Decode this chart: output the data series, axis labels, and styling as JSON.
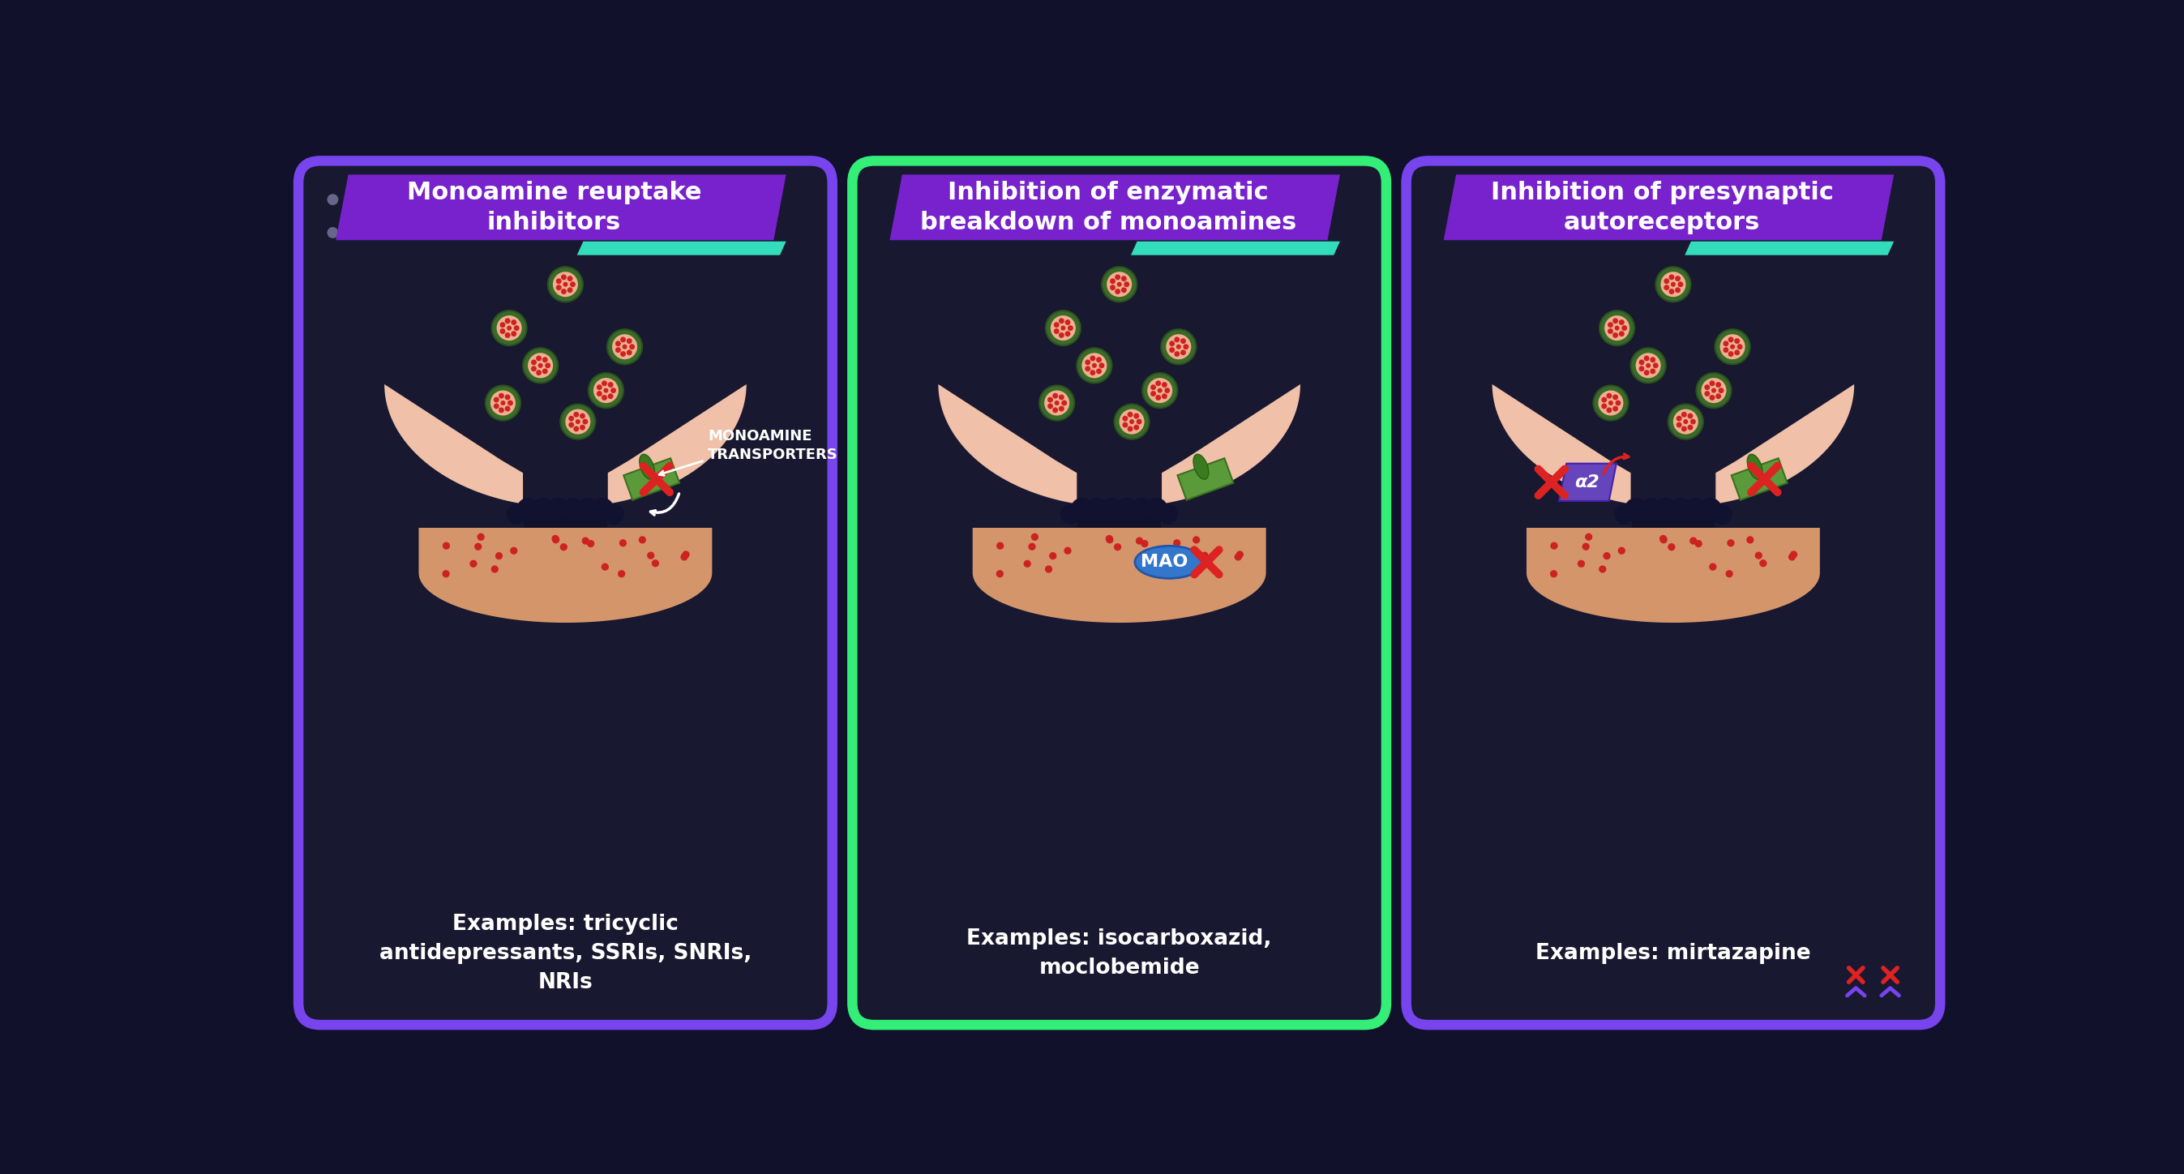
{
  "bg_color": "#12112b",
  "card_bg": "#181830",
  "synapse_color": "#f0c0a8",
  "post_color": "#d4956a",
  "title_bg": "#7722cc",
  "title_accent": "#33ddbb",
  "border1_color": "#7744ee",
  "border2_color": "#33ee77",
  "border3_color": "#7744ee",
  "dot_color": "#44445a",
  "inhibit_color": "#dd2222",
  "vesicle_outer": "#3a6a28",
  "vesicle_inner": "#eeb090",
  "nt_color": "#cc2222",
  "transporter_color": "#5a9a3a",
  "mao_color": "#3377cc",
  "alpha2_color": "#6644bb",
  "membrane_dot": "#111130",
  "white": "#ffffff",
  "gray_dot": "#666688",
  "title1": "Monoamine reuptake\ninhibitors",
  "title2": "Inhibition of enzymatic\nbreakdown of monoamines",
  "title3": "Inhibition of presynaptic\nautoreceptors",
  "example1": "Examples: tricyclic\nantidepressants, SSRIs, SNRIs,\nNRIs",
  "example2": "Examples: isocarboxazid,\nmoclobemide",
  "example3": "Examples: mirtazapine"
}
